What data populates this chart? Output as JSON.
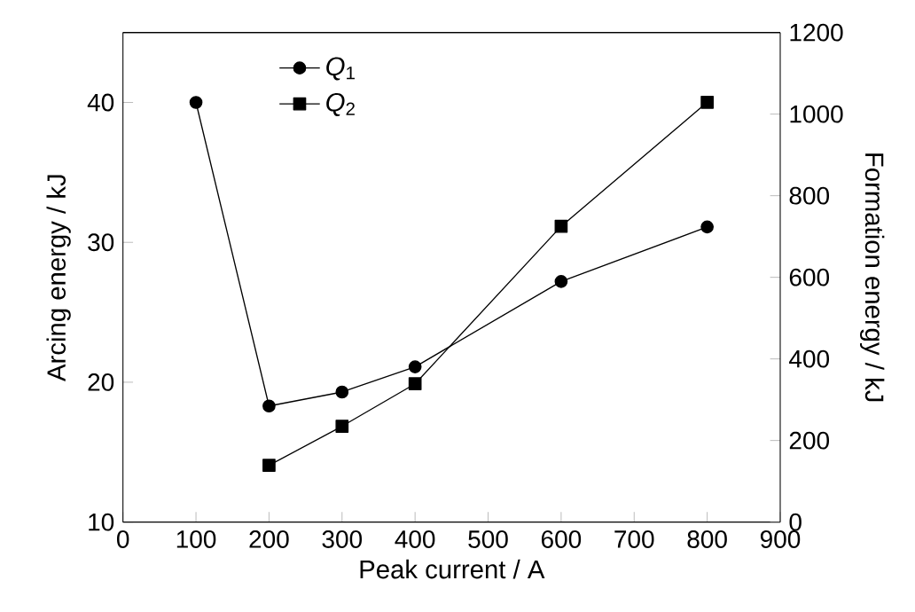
{
  "chart_data": {
    "type": "line",
    "xlabel": "Peak current / A",
    "ylabel": "Arcing energy / kJ",
    "y2label": "Formation  energy / kJ",
    "x": [
      100,
      200,
      300,
      400,
      600,
      800
    ],
    "series": [
      {
        "name": "*Q*$_{1}$",
        "color": "#000000",
        "marker": "circle",
        "values": [
          40,
          18.3,
          19.3,
          21.1,
          27.2,
          31.1
        ]
      },
      {
        "name": "*Q*$_{2}$",
        "color": "#000000",
        "marker": "square",
        "axis": "y2",
        "x": [
          200,
          300,
          400,
          600,
          800
        ],
        "values": [
          139,
          235,
          339,
          725,
          1029
        ]
      }
    ],
    "xlim": [
      0,
      900
    ],
    "xticks": [
      0,
      100,
      200,
      300,
      400,
      500,
      600,
      700,
      800,
      900
    ],
    "ylim": [
      10,
      45
    ],
    "yticks": [
      10,
      20,
      30,
      40
    ],
    "y2lim": [
      0,
      1200
    ],
    "y2ticks": [
      0,
      200,
      400,
      600,
      800,
      1000,
      1200
    ],
    "legend": "top left",
    "grid": false,
    "line_style": "solid"
  }
}
